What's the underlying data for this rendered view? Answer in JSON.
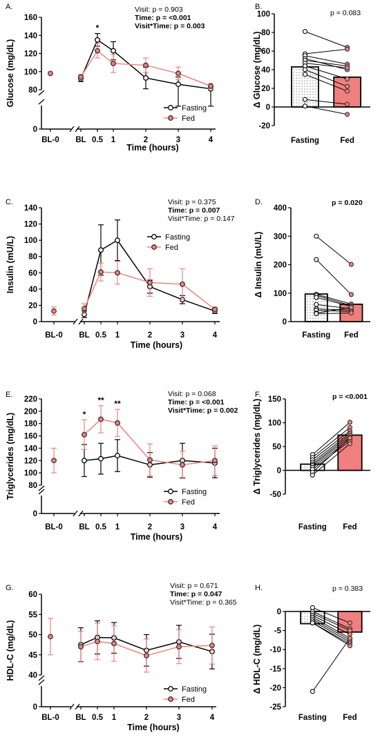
{
  "figure": {
    "panel_letters": [
      "A.",
      "B.",
      "C.",
      "D.",
      "E.",
      "F.",
      "G.",
      "H."
    ],
    "legend": {
      "fasting": "Fasting",
      "fed": "Fed"
    },
    "colors": {
      "fasting": "#000000",
      "fed": "#f08080",
      "fed_bar": "#f08080",
      "fasting_bar": "#ffffff"
    }
  },
  "chart_data": [
    {
      "type": "line",
      "panel": "A.",
      "ylabel": "Glucose (mg/dL)",
      "xlabel": "Time (hours)",
      "ylim": [
        0,
        160
      ],
      "yticks": [
        "80",
        "100",
        "120",
        "140",
        "160",
        "0"
      ],
      "xticks": [
        "BL-0",
        "BL",
        "0.5",
        "1",
        "2",
        "3",
        "4"
      ],
      "baseline_bl0": {
        "series": "Fed",
        "y": 98,
        "err": 0
      },
      "x": [
        0,
        0.5,
        1,
        2,
        3,
        4
      ],
      "series": [
        {
          "name": "Fasting",
          "y": [
            92,
            135,
            123,
            93,
            86,
            81
          ],
          "err": [
            3,
            7,
            10,
            12,
            8,
            3
          ]
        },
        {
          "name": "Fed",
          "y": [
            94,
            123,
            109,
            107,
            98,
            84
          ],
          "err": [
            3,
            8,
            10,
            8,
            7,
            3
          ]
        }
      ],
      "significance": [
        {
          "x": 0.5,
          "mark": "*"
        }
      ],
      "stats": [
        "Visit: p = 0.903",
        "Time: p = <0.001",
        "Visit*Time: p = 0.003"
      ],
      "legend_position": "bottom-right"
    },
    {
      "type": "bar",
      "panel": "B.",
      "ylabel": "Δ Glucose (mg/dL)",
      "categories": [
        "Fasting",
        "Fed"
      ],
      "values": [
        43,
        32
      ],
      "ylim": [
        -20,
        100
      ],
      "yticks": [
        "-20",
        "0",
        "20",
        "40",
        "60",
        "80",
        "100"
      ],
      "stat": "p = 0.083",
      "paired_points": [
        [
          81,
          64
        ],
        [
          57,
          62
        ],
        [
          55,
          46
        ],
        [
          52,
          40
        ],
        [
          50,
          44
        ],
        [
          47,
          42
        ],
        [
          44,
          30
        ],
        [
          40,
          22
        ],
        [
          35,
          17
        ],
        [
          8,
          3
        ],
        [
          1,
          -8
        ]
      ]
    },
    {
      "type": "line",
      "panel": "C.",
      "ylabel": "Insulin (mU/L)",
      "xlabel": "Time (hours)",
      "ylim": [
        0,
        140
      ],
      "yticks": [
        "0",
        "20",
        "40",
        "60",
        "80",
        "100",
        "120",
        "140"
      ],
      "xticks": [
        "BL-0",
        "BL",
        "0.5",
        "1",
        "2",
        "3",
        "4"
      ],
      "baseline_bl0": {
        "series": "Fed",
        "y": 13,
        "err": 5
      },
      "x": [
        0,
        0.5,
        1,
        2,
        3,
        4
      ],
      "series": [
        {
          "name": "Fasting",
          "y": [
            9,
            88,
            100,
            43,
            27,
            13
          ],
          "err": [
            4,
            31,
            25,
            8,
            5,
            3
          ]
        },
        {
          "name": "Fed",
          "y": [
            16,
            61,
            60,
            48,
            46,
            15
          ],
          "err": [
            6,
            11,
            14,
            17,
            19,
            3
          ]
        }
      ],
      "stats": [
        "Visit: p = 0.375",
        "Time: p = 0.007",
        "Visit*Time: p = 0.147"
      ],
      "legend_position": "top-right"
    },
    {
      "type": "bar",
      "panel": "D.",
      "ylabel": "Δ Insulin (mU/L)",
      "categories": [
        "Fasting",
        "Fed"
      ],
      "values": [
        97,
        61
      ],
      "ylim": [
        0,
        400
      ],
      "yticks": [
        "0",
        "100",
        "200",
        "300",
        "400"
      ],
      "stat": "p = 0.020",
      "paired_points": [
        [
          300,
          201
        ],
        [
          218,
          95
        ],
        [
          96,
          62
        ],
        [
          92,
          56
        ],
        [
          85,
          53
        ],
        [
          60,
          45
        ],
        [
          45,
          40
        ],
        [
          40,
          35
        ],
        [
          30,
          50
        ],
        [
          28,
          30
        ]
      ]
    },
    {
      "type": "line",
      "panel": "E.",
      "ylabel": "Triglycerides (mg/dL)",
      "xlabel": "Time (hours)",
      "ylim": [
        0,
        220
      ],
      "yticks": [
        "80",
        "100",
        "120",
        "140",
        "160",
        "180",
        "200",
        "220",
        "0"
      ],
      "xticks": [
        "BL-0",
        "BL",
        "0.5",
        "1",
        "2",
        "3",
        "4"
      ],
      "baseline_bl0": {
        "series": "Fed",
        "y": 120,
        "err": 20
      },
      "x": [
        0,
        0.5,
        1,
        2,
        3,
        4
      ],
      "series": [
        {
          "name": "Fasting",
          "y": [
            120,
            123,
            128,
            113,
            120,
            116
          ],
          "err": [
            26,
            25,
            26,
            20,
            28,
            24
          ]
        },
        {
          "name": "Fed",
          "y": [
            162,
            187,
            181,
            121,
            113,
            120
          ],
          "err": [
            24,
            22,
            22,
            26,
            22,
            24
          ]
        }
      ],
      "significance": [
        {
          "x": 0,
          "mark": "*"
        },
        {
          "x": 0.5,
          "mark": "**"
        },
        {
          "x": 1,
          "mark": "**"
        }
      ],
      "stats": [
        "Visit: p = 0.068",
        "Time: p = <0.001",
        "Visit*Time: p = 0.002"
      ],
      "legend_position": "bottom-right"
    },
    {
      "type": "bar",
      "panel": "F.",
      "ylabel": "Δ Triglycerides (mg/dL)",
      "categories": [
        "Fasting",
        "Fed"
      ],
      "values": [
        13,
        74
      ],
      "ylim": [
        -50,
        150
      ],
      "yticks": [
        "-50",
        "0",
        "50",
        "100",
        "150"
      ],
      "stat": "p = <0.001",
      "paired_points": [
        [
          33,
          101
        ],
        [
          27,
          90
        ],
        [
          22,
          83
        ],
        [
          17,
          78
        ],
        [
          13,
          74
        ],
        [
          10,
          70
        ],
        [
          6,
          66
        ],
        [
          2,
          62
        ],
        [
          -4,
          68
        ],
        [
          -10,
          56
        ]
      ]
    },
    {
      "type": "line",
      "panel": "G.",
      "ylabel": "HDL-C (mg/dL)",
      "xlabel": "Time (hours)",
      "ylim": [
        0,
        60
      ],
      "yticks": [
        "40",
        "45",
        "50",
        "55",
        "60",
        "0"
      ],
      "xticks": [
        "BL-0",
        "BL",
        "0.5",
        "1",
        "2",
        "3",
        "4"
      ],
      "baseline_bl0": {
        "series": "Fed",
        "y": 49.5,
        "err": 4.5
      },
      "x": [
        0,
        0.5,
        1,
        2,
        3,
        4
      ],
      "series": [
        {
          "name": "Fasting",
          "y": [
            47.5,
            49.3,
            49.2,
            46.1,
            48.2,
            45.8
          ],
          "err": [
            4.2,
            4.1,
            3.8,
            3.9,
            4.1,
            4.3
          ]
        },
        {
          "name": "Fed",
          "y": [
            47.0,
            48.3,
            47.8,
            44.8,
            47.0,
            47.3
          ],
          "err": [
            3.8,
            4.5,
            4.4,
            4.1,
            4.2,
            4.6
          ]
        }
      ],
      "stats": [
        "Visit: p = 0.671",
        "Time: p = 0.047",
        "Visit*Time: p = 0.365"
      ],
      "legend_position": "bottom-right"
    },
    {
      "type": "bar",
      "panel": "H.",
      "ylabel": "Δ HDL-C (mg/dL)",
      "categories": [
        "Fasting",
        "Fed"
      ],
      "values": [
        -3.2,
        -5.4
      ],
      "ylim": [
        -25,
        0
      ],
      "yticks": [
        "0",
        "-5",
        "-10",
        "-15",
        "-20",
        "-25"
      ],
      "stat": "p = 0.383",
      "paired_points": [
        [
          1,
          -3
        ],
        [
          0,
          -4.5
        ],
        [
          -0.5,
          -5
        ],
        [
          -1,
          -6
        ],
        [
          -1.5,
          -7
        ],
        [
          -2,
          -7.5
        ],
        [
          -2.5,
          -8
        ],
        [
          -3,
          -8.5
        ],
        [
          -3,
          -9
        ],
        [
          -21,
          -7
        ]
      ]
    }
  ]
}
